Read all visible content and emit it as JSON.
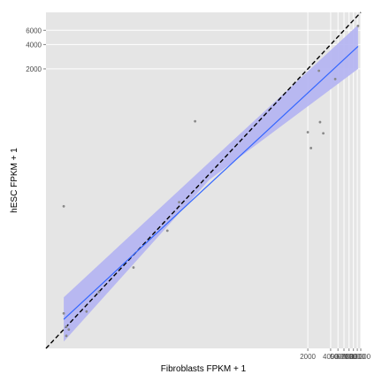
{
  "chart_data": {
    "type": "scatter",
    "title": "",
    "xlabel": "Fibroblasts FPKM + 1",
    "ylabel": "hESC FPKM + 1",
    "x_scale": "log10",
    "y_scale": "log10",
    "xlim": [
      0.7,
      10000
    ],
    "ylim": [
      0.7,
      10000
    ],
    "x_ticks": [
      {
        "value": 2000,
        "label": "2000"
      },
      {
        "value": 4000,
        "label": "4000"
      },
      {
        "value": 5000,
        "label": "5000"
      },
      {
        "value": 6000,
        "label": "6000"
      },
      {
        "value": 7000,
        "label": "7000"
      },
      {
        "value": 8000,
        "label": "8000"
      },
      {
        "value": 9000,
        "label": "9000"
      },
      {
        "value": 10000,
        "label": "10000"
      }
    ],
    "y_ticks": [
      {
        "value": 2000,
        "label": "2000"
      },
      {
        "value": 4000,
        "label": "4000"
      },
      {
        "value": 6000,
        "label": "6000"
      }
    ],
    "points": [
      {
        "x": 1.2,
        "y": 1.9
      },
      {
        "x": 1.3,
        "y": 1.3
      },
      {
        "x": 1.3,
        "y": 1.0
      },
      {
        "x": 1.4,
        "y": 1.2
      },
      {
        "x": 1.2,
        "y": 40
      },
      {
        "x": 2.4,
        "y": 2.0
      },
      {
        "x": 3.5,
        "y": 3.5
      },
      {
        "x": 10,
        "y": 7
      },
      {
        "x": 28,
        "y": 20
      },
      {
        "x": 40,
        "y": 45
      },
      {
        "x": 65,
        "y": 450
      },
      {
        "x": 2000,
        "y": 330
      },
      {
        "x": 2200,
        "y": 210
      },
      {
        "x": 2800,
        "y": 1900
      },
      {
        "x": 2900,
        "y": 440
      },
      {
        "x": 3200,
        "y": 320
      },
      {
        "x": 4600,
        "y": 1500
      },
      {
        "x": 9200,
        "y": 6800
      }
    ],
    "fit_line": {
      "method": "lm",
      "x": [
        1.2,
        9200
      ],
      "y": [
        1.6,
        3800
      ],
      "ci_upper": [
        3.0,
        7000
      ],
      "ci_lower": [
        0.85,
        2000
      ],
      "mid_ci": {
        "x": 100,
        "upper": 140,
        "lower": 85
      }
    },
    "reference_line": {
      "style": "dashed",
      "slope": 1,
      "intercept": 0
    },
    "colors": {
      "panel_background": "#e5e5e5",
      "gridline": "#ffffff",
      "point": "#888888",
      "fit_line": "#3366ff",
      "ci_band": "#b3b3f2",
      "reference_line": "#000000"
    },
    "grid": true,
    "legend": "none"
  }
}
